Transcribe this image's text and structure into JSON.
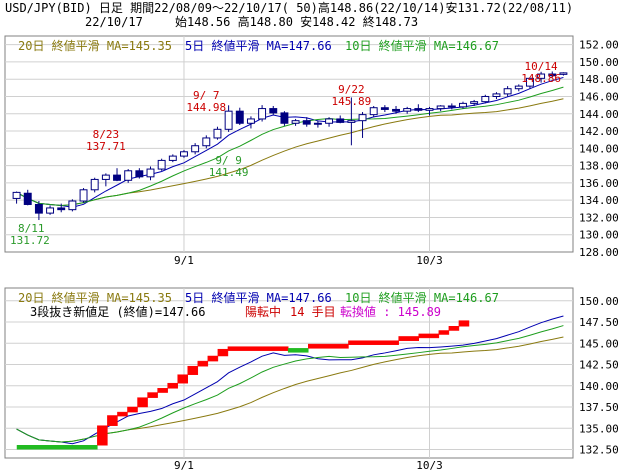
{
  "header": {
    "line1": "USD/JPY(BID) 日足 期間22/08/09〜22/10/17( 50)高148.86(22/10/14)安131.72(22/08/11)",
    "date": "22/10/17",
    "ohlc": "始148.56 高148.80 安148.42 終148.73"
  },
  "legend": {
    "ma1": "20日 終値平滑 MA=145.35",
    "ma2": "5日 終値平滑 MA=147.66",
    "ma3": "10日 終値平滑 MA=146.67",
    "kagi_label": "3段抜き新値足 (終値)=147.66",
    "kagi_status": "陽転中",
    "kagi_count": "14 手目",
    "kagi_reversal": "転換値 : 145.89"
  },
  "colors": {
    "up": "#ffffff",
    "down": "#000080",
    "ma1": "#8a7a10",
    "ma2": "#0000b0",
    "ma3": "#1e9e1e",
    "annot_high": "#cc0000",
    "annot_low": "#2a9a2a",
    "kagi_up": "#ff0000",
    "kagi_down": "#22bb22",
    "grid": "#d0d0d0"
  },
  "chart_data": [
    {
      "type": "candlestick",
      "x_ticks": [
        "9/1",
        "10/3"
      ],
      "ylim": [
        128,
        153
      ],
      "y_ticks": [
        "128.00",
        "130.00",
        "132.00",
        "134.00",
        "136.00",
        "138.00",
        "140.00",
        "142.00",
        "144.00",
        "146.00",
        "148.00",
        "150.00",
        "152.00"
      ],
      "ohlc": [
        [
          134.2,
          135.0,
          133.6,
          134.9
        ],
        [
          134.8,
          135.2,
          133.4,
          133.5
        ],
        [
          133.5,
          133.9,
          131.7,
          132.5
        ],
        [
          132.5,
          133.4,
          132.3,
          133.1
        ],
        [
          133.1,
          133.6,
          132.6,
          132.9
        ],
        [
          132.9,
          134.1,
          132.7,
          133.9
        ],
        [
          133.9,
          135.4,
          133.7,
          135.2
        ],
        [
          135.2,
          136.6,
          134.9,
          136.4
        ],
        [
          136.4,
          137.1,
          135.6,
          136.9
        ],
        [
          136.9,
          137.7,
          136.2,
          136.3
        ],
        [
          136.3,
          137.6,
          136.0,
          137.4
        ],
        [
          137.4,
          137.7,
          136.5,
          136.7
        ],
        [
          136.7,
          137.9,
          136.3,
          137.6
        ],
        [
          137.6,
          138.8,
          137.4,
          138.6
        ],
        [
          138.6,
          139.3,
          138.4,
          139.1
        ],
        [
          139.1,
          139.8,
          138.9,
          139.6
        ],
        [
          139.6,
          140.6,
          139.3,
          140.3
        ],
        [
          140.3,
          141.5,
          140.0,
          141.2
        ],
        [
          141.2,
          142.5,
          141.0,
          142.2
        ],
        [
          142.2,
          144.98,
          141.9,
          144.3
        ],
        [
          144.3,
          144.7,
          142.7,
          142.9
        ],
        [
          142.9,
          143.7,
          142.3,
          143.4
        ],
        [
          143.4,
          145.0,
          143.1,
          144.6
        ],
        [
          144.6,
          144.9,
          143.9,
          144.1
        ],
        [
          144.1,
          144.3,
          142.6,
          142.9
        ],
        [
          142.9,
          143.4,
          142.6,
          143.2
        ],
        [
          143.2,
          143.6,
          142.5,
          142.8
        ],
        [
          142.8,
          143.2,
          142.4,
          142.9
        ],
        [
          142.9,
          143.6,
          142.5,
          143.4
        ],
        [
          143.4,
          143.8,
          142.9,
          143.0
        ],
        [
          143.0,
          145.89,
          140.35,
          143.2
        ],
        [
          143.2,
          144.2,
          141.2,
          143.9
        ],
        [
          143.9,
          144.9,
          143.6,
          144.7
        ],
        [
          144.7,
          145.0,
          144.2,
          144.5
        ],
        [
          144.5,
          144.9,
          144.0,
          144.3
        ],
        [
          144.3,
          144.8,
          144.0,
          144.6
        ],
        [
          144.6,
          145.1,
          144.2,
          144.4
        ],
        [
          144.4,
          144.8,
          143.8,
          144.6
        ],
        [
          144.6,
          145.0,
          144.3,
          144.9
        ],
        [
          144.9,
          145.2,
          144.5,
          144.8
        ],
        [
          144.8,
          145.4,
          144.6,
          145.2
        ],
        [
          145.2,
          145.6,
          144.9,
          145.4
        ],
        [
          145.4,
          146.2,
          145.2,
          146.0
        ],
        [
          146.0,
          146.5,
          145.7,
          146.3
        ],
        [
          146.3,
          147.2,
          146.0,
          146.9
        ],
        [
          146.9,
          147.4,
          146.6,
          147.2
        ],
        [
          147.2,
          148.2,
          146.9,
          148.1
        ],
        [
          148.1,
          148.86,
          147.6,
          148.6
        ],
        [
          148.6,
          148.9,
          148.2,
          148.4
        ],
        [
          148.56,
          148.8,
          148.42,
          148.73
        ]
      ],
      "annotations": [
        {
          "date": "8/11",
          "value": "131.72",
          "kind": "low"
        },
        {
          "date": "8/23",
          "value": "137.71",
          "kind": "high"
        },
        {
          "date": "9/ 7",
          "value": "144.98",
          "kind": "high"
        },
        {
          "date": "9/ 9",
          "value": "141.49",
          "kind": "low"
        },
        {
          "date": "9/22",
          "value": "145.89",
          "kind": "high"
        },
        {
          "date": "10/14",
          "value": "148.86",
          "kind": "high"
        }
      ]
    },
    {
      "type": "kagi_bricks",
      "x_ticks": [
        "9/1",
        "10/3"
      ],
      "ylim": [
        131.5,
        151.5
      ],
      "y_ticks": [
        "132.50",
        "135.00",
        "137.50",
        "140.00",
        "142.50",
        "145.00",
        "147.50",
        "150.00"
      ],
      "bricks": [
        {
          "low": 132.6,
          "high": 133.0,
          "dir": "down",
          "span": 8
        },
        {
          "low": 133.0,
          "high": 135.3,
          "dir": "up"
        },
        {
          "low": 135.3,
          "high": 136.5,
          "dir": "up"
        },
        {
          "low": 136.5,
          "high": 136.9,
          "dir": "up"
        },
        {
          "low": 136.9,
          "high": 137.5,
          "dir": "up"
        },
        {
          "low": 137.5,
          "high": 138.6,
          "dir": "up"
        },
        {
          "low": 138.6,
          "high": 139.2,
          "dir": "up"
        },
        {
          "low": 139.2,
          "high": 139.7,
          "dir": "up"
        },
        {
          "low": 139.7,
          "high": 140.3,
          "dir": "up"
        },
        {
          "low": 140.3,
          "high": 141.3,
          "dir": "up"
        },
        {
          "low": 141.3,
          "high": 142.3,
          "dir": "up"
        },
        {
          "low": 142.3,
          "high": 142.9,
          "dir": "up"
        },
        {
          "low": 142.9,
          "high": 143.5,
          "dir": "up"
        },
        {
          "low": 143.5,
          "high": 144.3,
          "dir": "up"
        },
        {
          "low": 144.3,
          "high": 144.6,
          "dir": "up",
          "span": 6
        },
        {
          "low": 144.1,
          "high": 144.4,
          "dir": "down",
          "span": 2
        },
        {
          "low": 144.4,
          "high": 144.9,
          "dir": "up",
          "span": 4
        },
        {
          "low": 144.9,
          "high": 145.3,
          "dir": "up",
          "span": 5
        },
        {
          "low": 145.3,
          "high": 145.8,
          "dir": "up",
          "span": 2
        },
        {
          "low": 145.8,
          "high": 146.1,
          "dir": "up",
          "span": 2
        },
        {
          "low": 146.1,
          "high": 146.5,
          "dir": "up"
        },
        {
          "low": 146.5,
          "high": 147.0,
          "dir": "up"
        },
        {
          "low": 147.0,
          "high": 147.66,
          "dir": "up"
        }
      ]
    }
  ]
}
